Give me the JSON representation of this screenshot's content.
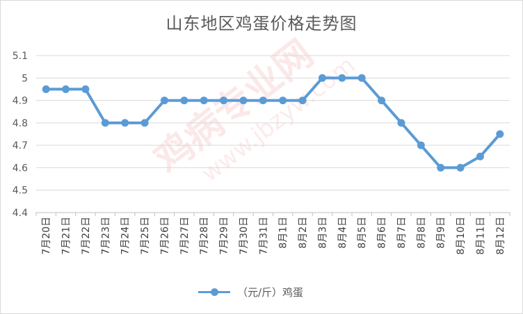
{
  "chart_data": {
    "type": "line",
    "title": "山东地区鸡蛋价格走势图",
    "categories": [
      "7月20日",
      "7月21日",
      "7月22日",
      "7月23日",
      "7月24日",
      "7月25日",
      "7月26日",
      "7月27日",
      "7月28日",
      "7月29日",
      "7月30日",
      "7月31日",
      "8月1日",
      "8月2日",
      "8月3日",
      "8月4日",
      "8月5日",
      "8月6日",
      "8月7日",
      "8月8日",
      "8月9日",
      "8月10日",
      "8月11日",
      "8月12日"
    ],
    "series": [
      {
        "name": "（元/斤）鸡蛋",
        "values": [
          4.95,
          4.95,
          4.95,
          4.8,
          4.8,
          4.8,
          4.9,
          4.9,
          4.9,
          4.9,
          4.9,
          4.9,
          4.9,
          4.9,
          5.0,
          5.0,
          5.0,
          4.9,
          4.8,
          4.7,
          4.6,
          4.6,
          4.65,
          4.75
        ]
      }
    ],
    "ylim": [
      4.4,
      5.1
    ],
    "yticks": [
      "4.4",
      "4.5",
      "4.6",
      "4.7",
      "4.8",
      "4.9",
      "5",
      "5.1"
    ],
    "grid": true,
    "legend_position": "bottom",
    "line_color": "#5b9bd5",
    "watermark": {
      "main": "鸡病专业网",
      "sub": "www.jbzyw.com"
    }
  }
}
